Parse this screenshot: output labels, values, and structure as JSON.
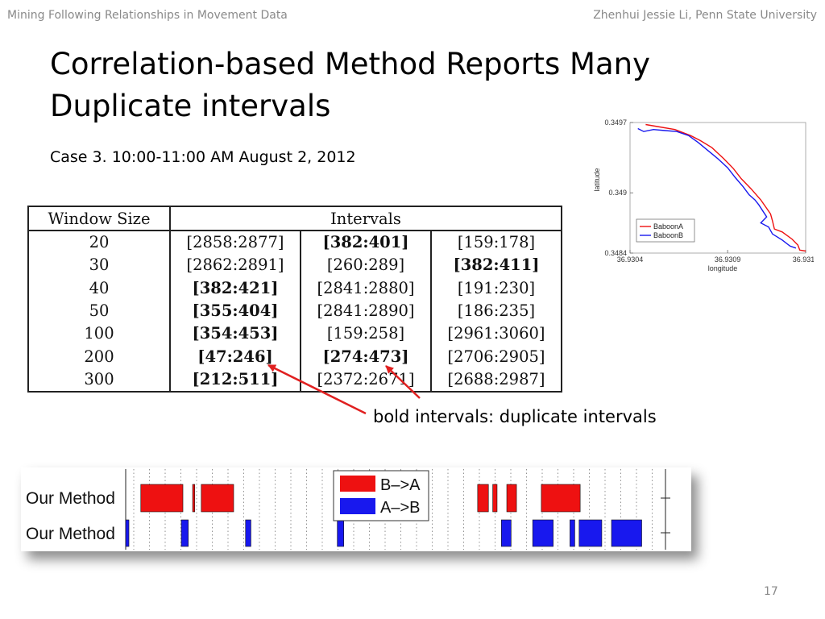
{
  "header": {
    "left": "Mining Following Relationships in Movement Data",
    "right": "Zhenhui Jessie Li, Penn State University"
  },
  "title": "Correlation-based Method Reports Many Duplicate intervals",
  "subtitle": "Case 3. 10:00-11:00 AM August 2, 2012",
  "table": {
    "headers": [
      "Window Size",
      "Intervals"
    ],
    "rows": [
      {
        "size": "20",
        "c1": "[2858:2877]",
        "c2": "[382:401]",
        "c3": "[159:178]",
        "bold": [
          false,
          true,
          false
        ]
      },
      {
        "size": "30",
        "c1": "[2862:2891]",
        "c2": "[260:289]",
        "c3": "[382:411]",
        "bold": [
          false,
          false,
          true
        ]
      },
      {
        "size": "40",
        "c1": "[382:421]",
        "c2": "[2841:2880]",
        "c3": "[191:230]",
        "bold": [
          true,
          false,
          false
        ]
      },
      {
        "size": "50",
        "c1": "[355:404]",
        "c2": "[2841:2890]",
        "c3": "[186:235]",
        "bold": [
          true,
          false,
          false
        ]
      },
      {
        "size": "100",
        "c1": "[354:453]",
        "c2": "[159:258]",
        "c3": "[2961:3060]",
        "bold": [
          true,
          false,
          false
        ]
      },
      {
        "size": "200",
        "c1": "[47:246]",
        "c2": "[274:473]",
        "c3": "[2706:2905]",
        "bold": [
          true,
          true,
          false
        ]
      },
      {
        "size": "300",
        "c1": "[212:511]",
        "c2": "[2372:2671]",
        "c3": "[2688:2987]",
        "bold": [
          true,
          false,
          false
        ]
      }
    ]
  },
  "callout": "bold intervals: duplicate intervals",
  "colors": {
    "red": "#ee1111",
    "blue": "#1818ee",
    "arrow": "#e02020",
    "muted": "#8a8a8a"
  },
  "chart_data": [
    {
      "type": "line",
      "xlabel": "longitude",
      "ylabel": "latitude",
      "xticks": [
        "36.9304",
        "36.9309",
        "36.9313"
      ],
      "yticks": [
        "0.3484",
        "0.349",
        "0.3497"
      ],
      "xlim": [
        36.9304,
        36.9313
      ],
      "ylim": [
        0.3484,
        0.3497
      ],
      "legend_position": "bottom-left",
      "series": [
        {
          "name": "BaboonA",
          "color": "#ee1111",
          "points": [
            [
              36.93048,
              0.34968
            ],
            [
              36.93054,
              0.34966
            ],
            [
              36.93063,
              0.34963
            ],
            [
              36.93071,
              0.34957
            ],
            [
              36.93076,
              0.34952
            ],
            [
              36.93082,
              0.34945
            ],
            [
              36.93088,
              0.34934
            ],
            [
              36.93093,
              0.34924
            ],
            [
              36.93097,
              0.34914
            ],
            [
              36.93102,
              0.34904
            ],
            [
              36.93107,
              0.34893
            ],
            [
              36.93112,
              0.34879
            ],
            [
              36.93113,
              0.34872
            ],
            [
              36.93114,
              0.34864
            ],
            [
              36.93118,
              0.34861
            ],
            [
              36.93123,
              0.34854
            ],
            [
              36.93126,
              0.34848
            ],
            [
              36.93127,
              0.34843
            ],
            [
              36.9313,
              0.34842
            ]
          ]
        },
        {
          "name": "BaboonB",
          "color": "#1818ee",
          "points": [
            [
              36.93044,
              0.34964
            ],
            [
              36.93047,
              0.34961
            ],
            [
              36.93052,
              0.34963
            ],
            [
              36.93058,
              0.34962
            ],
            [
              36.93064,
              0.34961
            ],
            [
              36.9307,
              0.34957
            ],
            [
              36.93075,
              0.3495
            ],
            [
              36.9308,
              0.34942
            ],
            [
              36.93085,
              0.34934
            ],
            [
              36.9309,
              0.34925
            ],
            [
              36.93094,
              0.34915
            ],
            [
              36.93098,
              0.34906
            ],
            [
              36.93101,
              0.34898
            ],
            [
              36.93104,
              0.34893
            ],
            [
              36.93106,
              0.34888
            ],
            [
              36.9311,
              0.34876
            ],
            [
              36.93107,
              0.3487
            ],
            [
              36.93111,
              0.34866
            ],
            [
              36.93113,
              0.34859
            ],
            [
              36.93118,
              0.34853
            ],
            [
              36.93122,
              0.34847
            ],
            [
              36.93125,
              0.34845
            ]
          ]
        }
      ]
    },
    {
      "type": "bar",
      "legend": [
        "B–>A",
        "A–>B"
      ],
      "series": [
        {
          "label": "Our Method",
          "color": "#ee1111",
          "intervals": [
            [
              0.028,
              0.106
            ],
            [
              0.124,
              0.128
            ],
            [
              0.14,
              0.2
            ],
            [
              0.652,
              0.672
            ],
            [
              0.68,
              0.688
            ],
            [
              0.706,
              0.724
            ],
            [
              0.77,
              0.842
            ]
          ]
        },
        {
          "label": "Our Method",
          "color": "#1818ee",
          "intervals": [
            [
              0,
              0.006
            ],
            [
              0.103,
              0.116
            ],
            [
              0.222,
              0.232
            ],
            [
              0.392,
              0.404
            ],
            [
              0.696,
              0.714
            ],
            [
              0.754,
              0.792
            ],
            [
              0.823,
              0.832
            ],
            [
              0.84,
              0.882
            ],
            [
              0.9,
              0.956
            ]
          ]
        }
      ]
    }
  ],
  "page_number": "17"
}
